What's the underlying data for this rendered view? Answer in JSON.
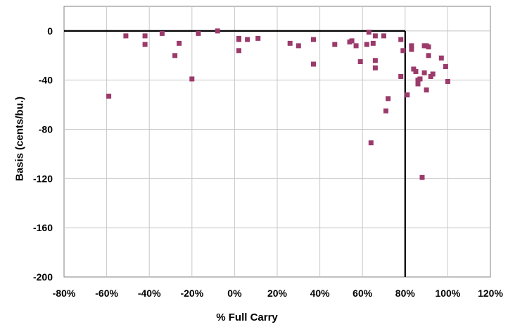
{
  "chart_data": {
    "type": "scatter",
    "title": "",
    "xlabel": "% Full Carry",
    "ylabel": "Basis (cents/bu.)",
    "xlim": [
      -80,
      120
    ],
    "ylim": [
      -200,
      20
    ],
    "x_ticks": [
      -80,
      -60,
      -40,
      -20,
      0,
      20,
      40,
      60,
      80,
      100,
      120
    ],
    "x_tick_labels": [
      "-80%",
      "-60%",
      "-40%",
      "-20%",
      "0%",
      "20%",
      "40%",
      "60%",
      "80%",
      "100%",
      "120%"
    ],
    "y_ticks": [
      0,
      -40,
      -80,
      -120,
      -160,
      -200
    ],
    "y_tick_labels": [
      "0",
      "-40",
      "-80",
      "-120",
      "-160",
      "-200"
    ],
    "grid": true,
    "marker_color": "#9b3a6b",
    "reference_lines": {
      "horizontal_y": 0,
      "vertical_x": 80,
      "x_from": -80,
      "y_from": -200
    },
    "series": [
      {
        "points": [
          {
            "x": -59,
            "y": -53
          },
          {
            "x": -51,
            "y": -4
          },
          {
            "x": -42,
            "y": -4
          },
          {
            "x": -42,
            "y": -11
          },
          {
            "x": -34,
            "y": -2
          },
          {
            "x": -28,
            "y": -20
          },
          {
            "x": -26,
            "y": -10
          },
          {
            "x": -20,
            "y": -39
          },
          {
            "x": -17,
            "y": -2
          },
          {
            "x": -8,
            "y": 0
          },
          {
            "x": 2,
            "y": -6
          },
          {
            "x": 2,
            "y": -7
          },
          {
            "x": 2,
            "y": -16
          },
          {
            "x": 6,
            "y": -7
          },
          {
            "x": 11,
            "y": -6
          },
          {
            "x": 26,
            "y": -10
          },
          {
            "x": 30,
            "y": -12
          },
          {
            "x": 37,
            "y": -7
          },
          {
            "x": 37,
            "y": -27
          },
          {
            "x": 47,
            "y": -11
          },
          {
            "x": 54,
            "y": -9
          },
          {
            "x": 55,
            "y": -8
          },
          {
            "x": 57,
            "y": -12
          },
          {
            "x": 59,
            "y": -25
          },
          {
            "x": 62,
            "y": -11
          },
          {
            "x": 63,
            "y": -1
          },
          {
            "x": 64,
            "y": -91
          },
          {
            "x": 65,
            "y": -10
          },
          {
            "x": 66,
            "y": -4
          },
          {
            "x": 66,
            "y": -24
          },
          {
            "x": 66,
            "y": -30
          },
          {
            "x": 70,
            "y": -4
          },
          {
            "x": 71,
            "y": -65
          },
          {
            "x": 72,
            "y": -55
          },
          {
            "x": 78,
            "y": -7
          },
          {
            "x": 78,
            "y": -37
          },
          {
            "x": 79,
            "y": -16
          },
          {
            "x": 81,
            "y": -52
          },
          {
            "x": 83,
            "y": -12
          },
          {
            "x": 83,
            "y": -15
          },
          {
            "x": 84,
            "y": -31
          },
          {
            "x": 85,
            "y": -33
          },
          {
            "x": 86,
            "y": -43
          },
          {
            "x": 86,
            "y": -40
          },
          {
            "x": 87,
            "y": -39
          },
          {
            "x": 88,
            "y": -119
          },
          {
            "x": 89,
            "y": -12
          },
          {
            "x": 89,
            "y": -34
          },
          {
            "x": 90,
            "y": -12
          },
          {
            "x": 90,
            "y": -48
          },
          {
            "x": 91,
            "y": -20
          },
          {
            "x": 91,
            "y": -13
          },
          {
            "x": 92,
            "y": -37
          },
          {
            "x": 93,
            "y": -35
          },
          {
            "x": 97,
            "y": -22
          },
          {
            "x": 99,
            "y": -29
          },
          {
            "x": 100,
            "y": -41
          }
        ]
      }
    ]
  }
}
